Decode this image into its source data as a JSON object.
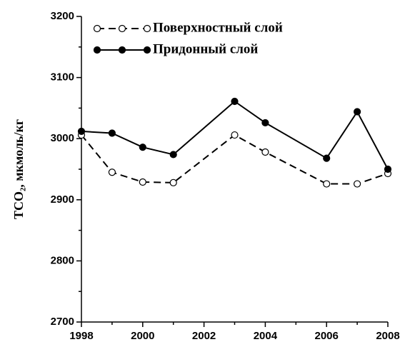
{
  "chart_data": {
    "type": "line",
    "ylabel": "TCO₂, мкмоль/кг",
    "x": [
      1998,
      1999,
      2000,
      2001,
      2003,
      2004,
      2006,
      2007,
      2008
    ],
    "series": [
      {
        "name": "Поверхностный слой",
        "color": "#000000",
        "dashed": true,
        "marker": "open",
        "values": [
          3006,
          2945,
          2929,
          2928,
          3006,
          2978,
          2926,
          2926,
          2943
        ]
      },
      {
        "name": "Придонный слой",
        "color": "#000000",
        "dashed": false,
        "marker": "filled",
        "values": [
          3012,
          3009,
          2986,
          2974,
          3061,
          3026,
          2968,
          3044,
          2950
        ]
      }
    ],
    "xlim": [
      1998,
      2008
    ],
    "xticks": [
      1998,
      2000,
      2002,
      2004,
      2006,
      2008
    ],
    "xminor_ticks": [
      1999,
      2001,
      2003,
      2005,
      2007
    ],
    "ylim": [
      2700,
      3200
    ],
    "yticks": [
      2700,
      2800,
      2900,
      3000,
      3100,
      3200
    ],
    "yminor_ticks": [
      2750,
      2850,
      2950,
      3050,
      3150
    ],
    "legend": "upper left",
    "grid": false
  }
}
